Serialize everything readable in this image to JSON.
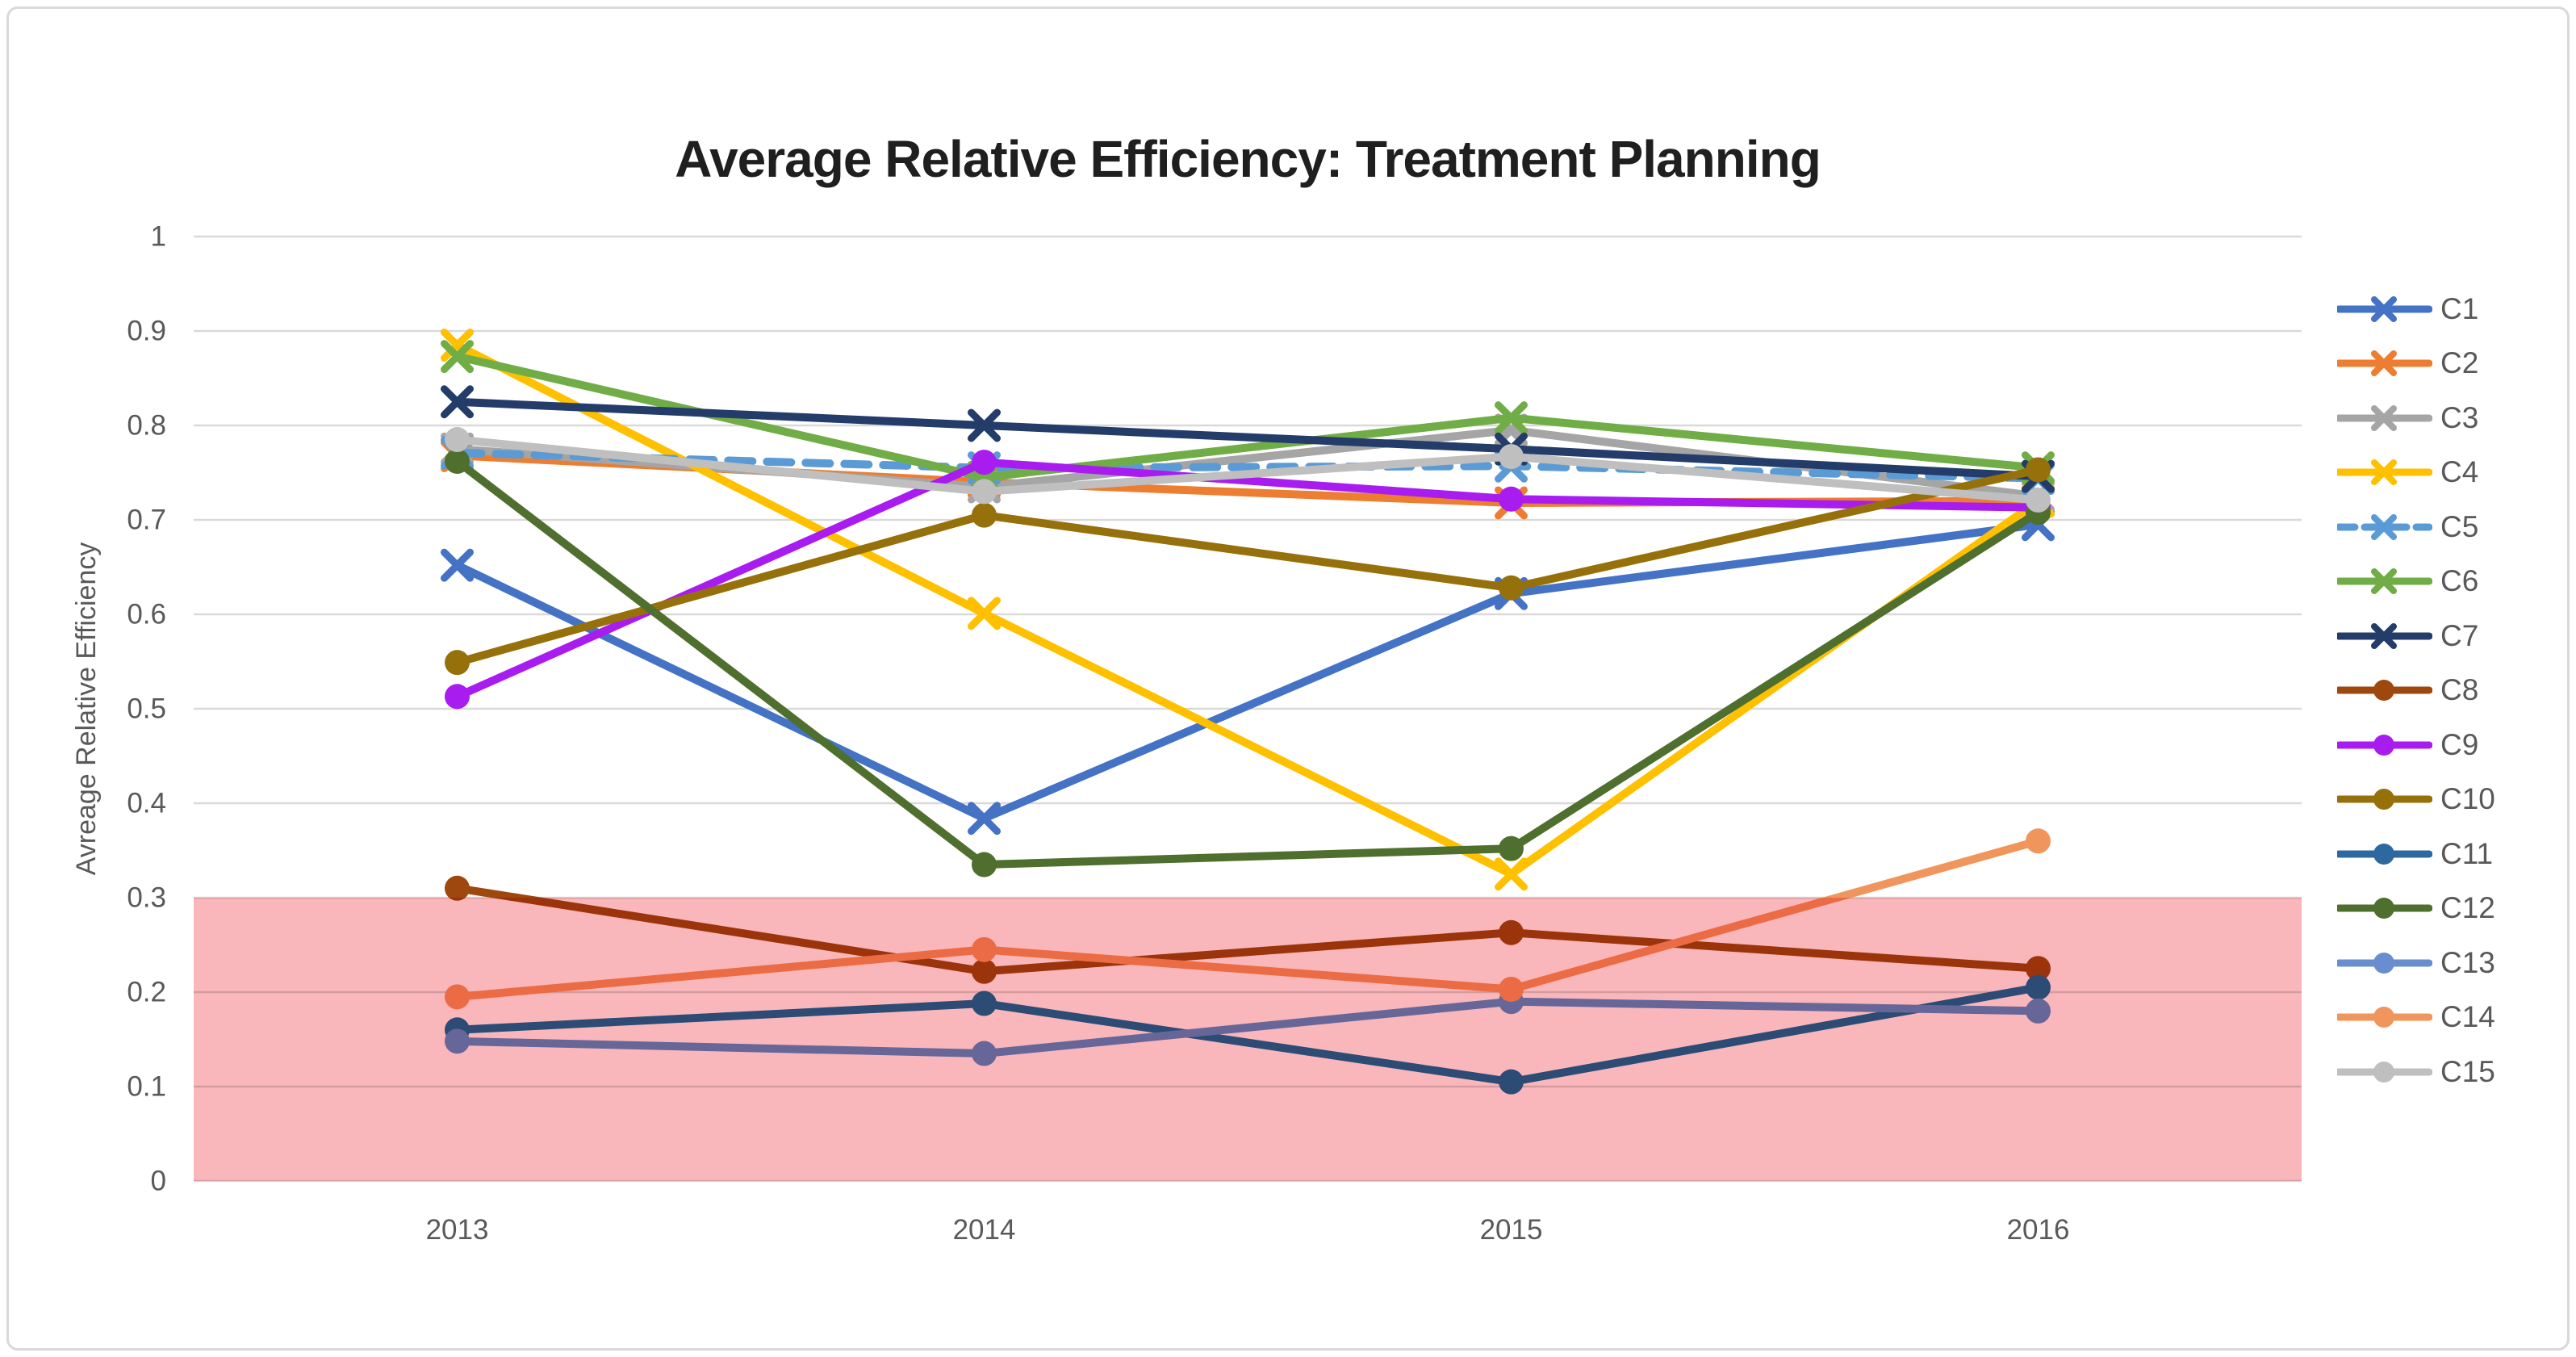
{
  "page": {
    "background": "#FFFFFF",
    "border_color": "#D9D9D9"
  },
  "chart_data": {
    "type": "line",
    "title": "Average Relative Efficiency: Treatment Planning",
    "ylabel": "Avreage Relative Efficiency",
    "xlabel": "",
    "categories": [
      "2013",
      "2014",
      "2015",
      "2016"
    ],
    "ylim": [
      0,
      1
    ],
    "ytick_labels": [
      "0",
      "0.1",
      "0.2",
      "0.3",
      "0.4",
      "0.5",
      "0.6",
      "0.7",
      "0.8",
      "0.9",
      "1"
    ],
    "grid": "horizontal",
    "gridline_color": "#D9D9D9",
    "tick_text_color": "#595959",
    "legend_position": "right",
    "highlight_band": {
      "from": 0,
      "to": 0.3,
      "color": "#FAB7BB",
      "blend": "multiply"
    },
    "series": [
      {
        "name": "C1",
        "color": "#4472C4",
        "marker": "x",
        "line": "solid",
        "values": [
          0.652,
          0.384,
          0.622,
          0.695
        ]
      },
      {
        "name": "C2",
        "color": "#ED7D31",
        "marker": "x",
        "line": "solid",
        "values": [
          0.768,
          0.74,
          0.718,
          0.72
        ]
      },
      {
        "name": "C3",
        "color": "#A5A5A5",
        "marker": "x",
        "line": "solid",
        "values": [
          0.775,
          0.735,
          0.795,
          0.725
        ]
      },
      {
        "name": "C4",
        "color": "#FFC000",
        "marker": "x",
        "line": "solid",
        "values": [
          0.885,
          0.601,
          0.325,
          0.72
        ]
      },
      {
        "name": "C5",
        "color": "#5B9BD5",
        "marker": "x",
        "line": "dash",
        "values": [
          0.771,
          0.755,
          0.757,
          0.744
        ]
      },
      {
        "name": "C6",
        "color": "#70AD47",
        "marker": "x",
        "line": "solid",
        "values": [
          0.873,
          0.745,
          0.808,
          0.755
        ]
      },
      {
        "name": "C7",
        "color": "#233C69",
        "marker": "x",
        "line": "solid",
        "values": [
          0.825,
          0.8,
          0.775,
          0.746
        ]
      },
      {
        "name": "C8",
        "color": "#9E480E",
        "marker": "circle",
        "line": "solid",
        "values": [
          0.31,
          0.222,
          0.263,
          0.225
        ]
      },
      {
        "name": "C9",
        "color": "#A81CF0",
        "marker": "circle",
        "line": "solid",
        "values": [
          0.513,
          0.761,
          0.722,
          0.713
        ]
      },
      {
        "name": "C10",
        "color": "#96700A",
        "marker": "circle",
        "line": "solid",
        "values": [
          0.549,
          0.705,
          0.628,
          0.753
        ]
      },
      {
        "name": "C11",
        "color": "#2D69A0",
        "marker": "circle",
        "line": "solid",
        "values": [
          0.16,
          0.188,
          0.105,
          0.205
        ]
      },
      {
        "name": "C12",
        "color": "#4F6F2F",
        "marker": "circle",
        "line": "solid",
        "values": [
          0.762,
          0.335,
          0.352,
          0.708
        ]
      },
      {
        "name": "C13",
        "color": "#698ED0",
        "marker": "circle",
        "line": "solid",
        "values": [
          0.148,
          0.135,
          0.19,
          0.18
        ]
      },
      {
        "name": "C14",
        "color": "#F0965C",
        "marker": "circle",
        "line": "solid",
        "values": [
          0.195,
          0.245,
          0.203,
          0.36
        ]
      },
      {
        "name": "C15",
        "color": "#BFBFBF",
        "marker": "circle",
        "line": "solid",
        "values": [
          0.785,
          0.73,
          0.767,
          0.721
        ]
      }
    ]
  }
}
